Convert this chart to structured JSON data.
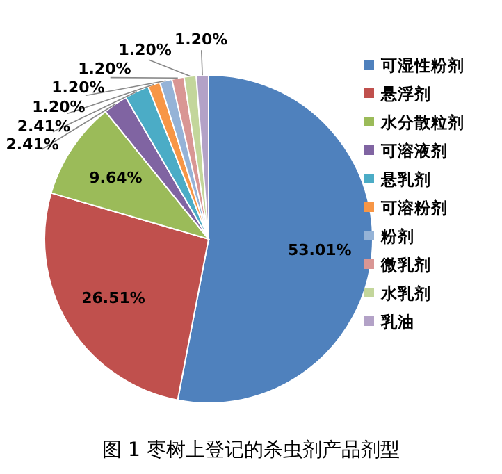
{
  "chart_data": {
    "type": "pie",
    "title": "图 1  枣树上登记的杀虫剂产品剂型",
    "categories": [
      "可湿性粉剂",
      "悬浮剂",
      "水分散粒剂",
      "可溶液剂",
      "悬乳剂",
      "可溶粉剂",
      "粉剂",
      "微乳剂",
      "水乳剂",
      "乳油"
    ],
    "values": [
      53.01,
      26.51,
      9.64,
      2.41,
      2.41,
      1.2,
      1.2,
      1.2,
      1.2,
      1.2
    ],
    "colors": [
      "#4f81bd",
      "#c0504d",
      "#9bbb59",
      "#8064a2",
      "#4bacc6",
      "#f79646",
      "#95b3d7",
      "#d99694",
      "#c3d69b",
      "#b3a2c7"
    ],
    "value_labels": [
      "53.01%",
      "26.51%",
      "9.64%",
      "2.41%",
      "2.41%",
      "1.20%",
      "1.20%",
      "1.20%",
      "1.20%",
      "1.20%"
    ],
    "legend": "right"
  }
}
